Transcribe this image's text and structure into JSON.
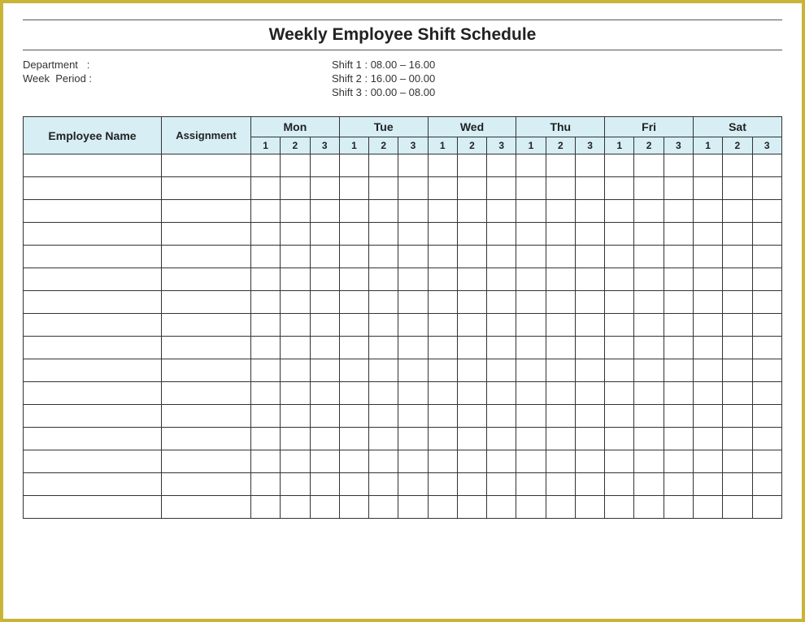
{
  "title": "Weekly Employee Shift Schedule",
  "info": {
    "department_label": "Department   :",
    "week_period_label": "Week  Period :",
    "shift1": "Shift 1 : 08.00 – 16.00",
    "shift2": "Shift 2 : 16.00 – 00.00",
    "shift3": "Shift 3 : 00.00 – 08.00"
  },
  "table": {
    "employee_name_header": "Employee Name",
    "assignment_header": "Assignment",
    "days": [
      "Mon",
      "Tue",
      "Wed",
      "Thu",
      "Fri",
      "Sat"
    ],
    "shifts": [
      "1",
      "2",
      "3"
    ],
    "row_count": 16,
    "header_bg": "#d6eef4",
    "border_color": "#333333"
  },
  "frame_border_color": "#c9b438"
}
